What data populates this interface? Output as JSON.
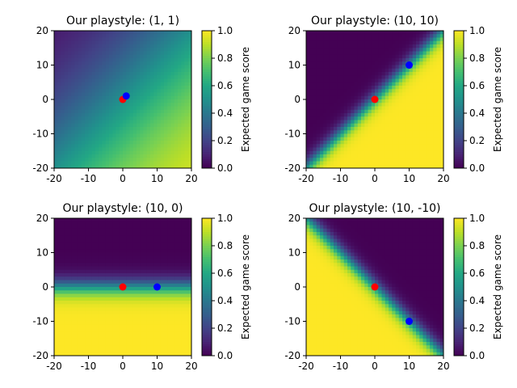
{
  "colors": {
    "origin_point": "#ff0000",
    "playstyle_point": "#0000ff",
    "colormap": "viridis"
  },
  "chart_data": [
    {
      "type": "heatmap",
      "title": "Our playstyle: (1, 1)",
      "playstyle": [
        1,
        1
      ],
      "xlim": [
        -20,
        20
      ],
      "ylim": [
        -20,
        20
      ],
      "xticks": [
        -20,
        -10,
        0,
        10,
        20
      ],
      "yticks": [
        -20,
        -10,
        0,
        10,
        20
      ],
      "points": [
        {
          "x": 0,
          "y": 0,
          "color": "#ff0000"
        },
        {
          "x": 1,
          "y": 1,
          "color": "#0000ff"
        }
      ],
      "colorbar": {
        "label": "Expected game score",
        "range": [
          0,
          1
        ],
        "ticks": [
          "0.0",
          "0.2",
          "0.4",
          "0.6",
          "0.8",
          "1.0"
        ]
      }
    },
    {
      "type": "heatmap",
      "title": "Our playstyle: (10, 10)",
      "playstyle": [
        10,
        10
      ],
      "xlim": [
        -20,
        20
      ],
      "ylim": [
        -20,
        20
      ],
      "xticks": [
        -20,
        -10,
        0,
        10,
        20
      ],
      "yticks": [
        -20,
        -10,
        0,
        10,
        20
      ],
      "points": [
        {
          "x": 0,
          "y": 0,
          "color": "#ff0000"
        },
        {
          "x": 10,
          "y": 10,
          "color": "#0000ff"
        }
      ],
      "colorbar": {
        "label": "Expected game score",
        "range": [
          0,
          1
        ],
        "ticks": [
          "0.0",
          "0.2",
          "0.4",
          "0.6",
          "0.8",
          "1.0"
        ]
      }
    },
    {
      "type": "heatmap",
      "title": "Our playstyle: (10, 0)",
      "playstyle": [
        10,
        0
      ],
      "xlim": [
        -20,
        20
      ],
      "ylim": [
        -20,
        20
      ],
      "xticks": [
        -20,
        -10,
        0,
        10,
        20
      ],
      "yticks": [
        -20,
        -10,
        0,
        10,
        20
      ],
      "points": [
        {
          "x": 0,
          "y": 0,
          "color": "#ff0000"
        },
        {
          "x": 10,
          "y": 0,
          "color": "#0000ff"
        }
      ],
      "colorbar": {
        "label": "Expected game score",
        "range": [
          0,
          1
        ],
        "ticks": [
          "0.0",
          "0.2",
          "0.4",
          "0.6",
          "0.8",
          "1.0"
        ]
      }
    },
    {
      "type": "heatmap",
      "title": "Our playstyle: (10, -10)",
      "playstyle": [
        10,
        -10
      ],
      "xlim": [
        -20,
        20
      ],
      "ylim": [
        -20,
        20
      ],
      "xticks": [
        -20,
        -10,
        0,
        10,
        20
      ],
      "yticks": [
        -20,
        -10,
        0,
        10,
        20
      ],
      "points": [
        {
          "x": 0,
          "y": 0,
          "color": "#ff0000"
        },
        {
          "x": 10,
          "y": -10,
          "color": "#0000ff"
        }
      ],
      "colorbar": {
        "label": "Expected game score",
        "range": [
          0,
          1
        ],
        "ticks": [
          "0.0",
          "0.2",
          "0.4",
          "0.6",
          "0.8",
          "1.0"
        ]
      }
    }
  ]
}
